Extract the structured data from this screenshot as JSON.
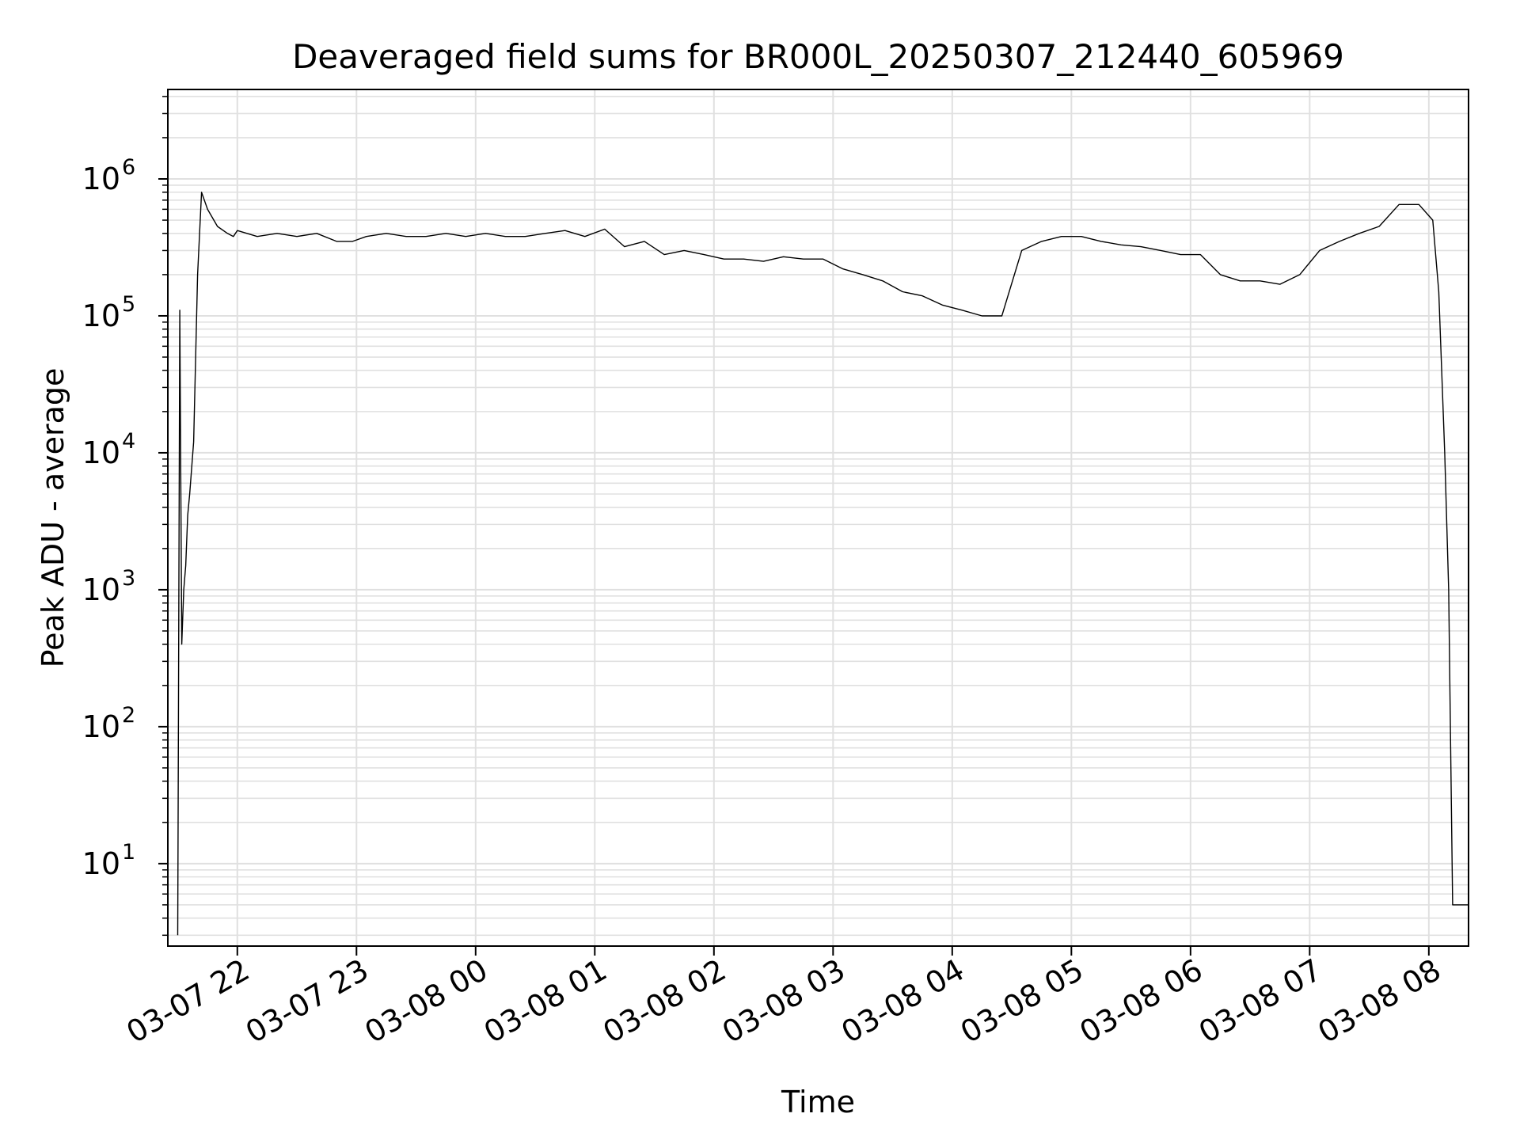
{
  "chart_data": {
    "type": "line",
    "title": "Deaveraged field sums for BR000L_20250307_212440_605969",
    "xlabel": "Time",
    "ylabel": "Peak ADU - average",
    "yscale": "log",
    "ylim": [
      2.5,
      4500000
    ],
    "xlim": [
      "2025-03-07 21:25",
      "2025-03-08 08:20"
    ],
    "grid": true,
    "line_color": "#000000",
    "grid_color": "#e0e0e0",
    "x_ticks": [
      {
        "t": "2025-03-07 22:00",
        "label": "03-07 22"
      },
      {
        "t": "2025-03-07 23:00",
        "label": "03-07 23"
      },
      {
        "t": "2025-03-08 00:00",
        "label": "03-08 00"
      },
      {
        "t": "2025-03-08 01:00",
        "label": "03-08 01"
      },
      {
        "t": "2025-03-08 02:00",
        "label": "03-08 02"
      },
      {
        "t": "2025-03-08 03:00",
        "label": "03-08 03"
      },
      {
        "t": "2025-03-08 04:00",
        "label": "03-08 04"
      },
      {
        "t": "2025-03-08 05:00",
        "label": "03-08 05"
      },
      {
        "t": "2025-03-08 06:00",
        "label": "03-08 06"
      },
      {
        "t": "2025-03-08 07:00",
        "label": "03-08 07"
      },
      {
        "t": "2025-03-08 08:00",
        "label": "03-08 08"
      }
    ],
    "y_ticks": [
      {
        "value": 10,
        "base": "10",
        "exp": "1"
      },
      {
        "value": 100,
        "base": "10",
        "exp": "2"
      },
      {
        "value": 1000,
        "base": "10",
        "exp": "3"
      },
      {
        "value": 10000,
        "base": "10",
        "exp": "4"
      },
      {
        "value": 100000,
        "base": "10",
        "exp": "5"
      },
      {
        "value": 1000000,
        "base": "10",
        "exp": "6"
      }
    ],
    "series": [
      {
        "x": [
          "2025-03-07 21:30",
          "2025-03-07 21:31",
          "2025-03-07 21:32",
          "2025-03-07 21:33",
          "2025-03-07 21:34",
          "2025-03-07 21:35",
          "2025-03-07 21:36",
          "2025-03-07 21:38",
          "2025-03-07 21:40",
          "2025-03-07 21:42",
          "2025-03-07 21:45",
          "2025-03-07 21:50",
          "2025-03-07 21:55",
          "2025-03-07 21:58",
          "2025-03-07 22:00",
          "2025-03-07 22:10",
          "2025-03-07 22:20",
          "2025-03-07 22:30",
          "2025-03-07 22:40",
          "2025-03-07 22:50",
          "2025-03-07 22:58",
          "2025-03-07 23:05",
          "2025-03-07 23:15",
          "2025-03-07 23:25",
          "2025-03-07 23:35",
          "2025-03-07 23:45",
          "2025-03-07 23:55",
          "2025-03-08 00:05",
          "2025-03-08 00:15",
          "2025-03-08 00:25",
          "2025-03-08 00:35",
          "2025-03-08 00:45",
          "2025-03-08 00:55",
          "2025-03-08 01:05",
          "2025-03-08 01:15",
          "2025-03-08 01:25",
          "2025-03-08 01:35",
          "2025-03-08 01:45",
          "2025-03-08 01:55",
          "2025-03-08 02:05",
          "2025-03-08 02:15",
          "2025-03-08 02:25",
          "2025-03-08 02:35",
          "2025-03-08 02:45",
          "2025-03-08 02:55",
          "2025-03-08 03:05",
          "2025-03-08 03:15",
          "2025-03-08 03:25",
          "2025-03-08 03:35",
          "2025-03-08 03:45",
          "2025-03-08 03:55",
          "2025-03-08 04:05",
          "2025-03-08 04:15",
          "2025-03-08 04:25",
          "2025-03-08 04:35",
          "2025-03-08 04:45",
          "2025-03-08 04:55",
          "2025-03-08 05:05",
          "2025-03-08 05:15",
          "2025-03-08 05:25",
          "2025-03-08 05:35",
          "2025-03-08 05:45",
          "2025-03-08 05:55",
          "2025-03-08 06:05",
          "2025-03-08 06:15",
          "2025-03-08 06:25",
          "2025-03-08 06:35",
          "2025-03-08 06:45",
          "2025-03-08 06:55",
          "2025-03-08 07:05",
          "2025-03-08 07:15",
          "2025-03-08 07:25",
          "2025-03-08 07:35",
          "2025-03-08 07:45",
          "2025-03-08 07:55",
          "2025-03-08 08:02",
          "2025-03-08 08:05",
          "2025-03-08 08:08",
          "2025-03-08 08:10",
          "2025-03-08 08:12",
          "2025-03-08 08:20"
        ],
        "values": [
          3,
          110000,
          400,
          1000,
          1500,
          3500,
          5000,
          12000,
          200000,
          800000,
          600000,
          450000,
          400000,
          380000,
          420000,
          380000,
          400000,
          380000,
          400000,
          350000,
          350000,
          380000,
          400000,
          380000,
          380000,
          400000,
          380000,
          400000,
          380000,
          380000,
          400000,
          420000,
          380000,
          430000,
          320000,
          350000,
          280000,
          300000,
          280000,
          260000,
          260000,
          250000,
          270000,
          260000,
          260000,
          220000,
          200000,
          180000,
          150000,
          140000,
          120000,
          110000,
          100000,
          100000,
          300000,
          350000,
          380000,
          380000,
          350000,
          330000,
          320000,
          300000,
          280000,
          280000,
          200000,
          180000,
          180000,
          170000,
          200000,
          300000,
          350000,
          400000,
          450000,
          650000,
          650000,
          500000,
          150000,
          10000,
          1000,
          5,
          5
        ]
      }
    ]
  }
}
